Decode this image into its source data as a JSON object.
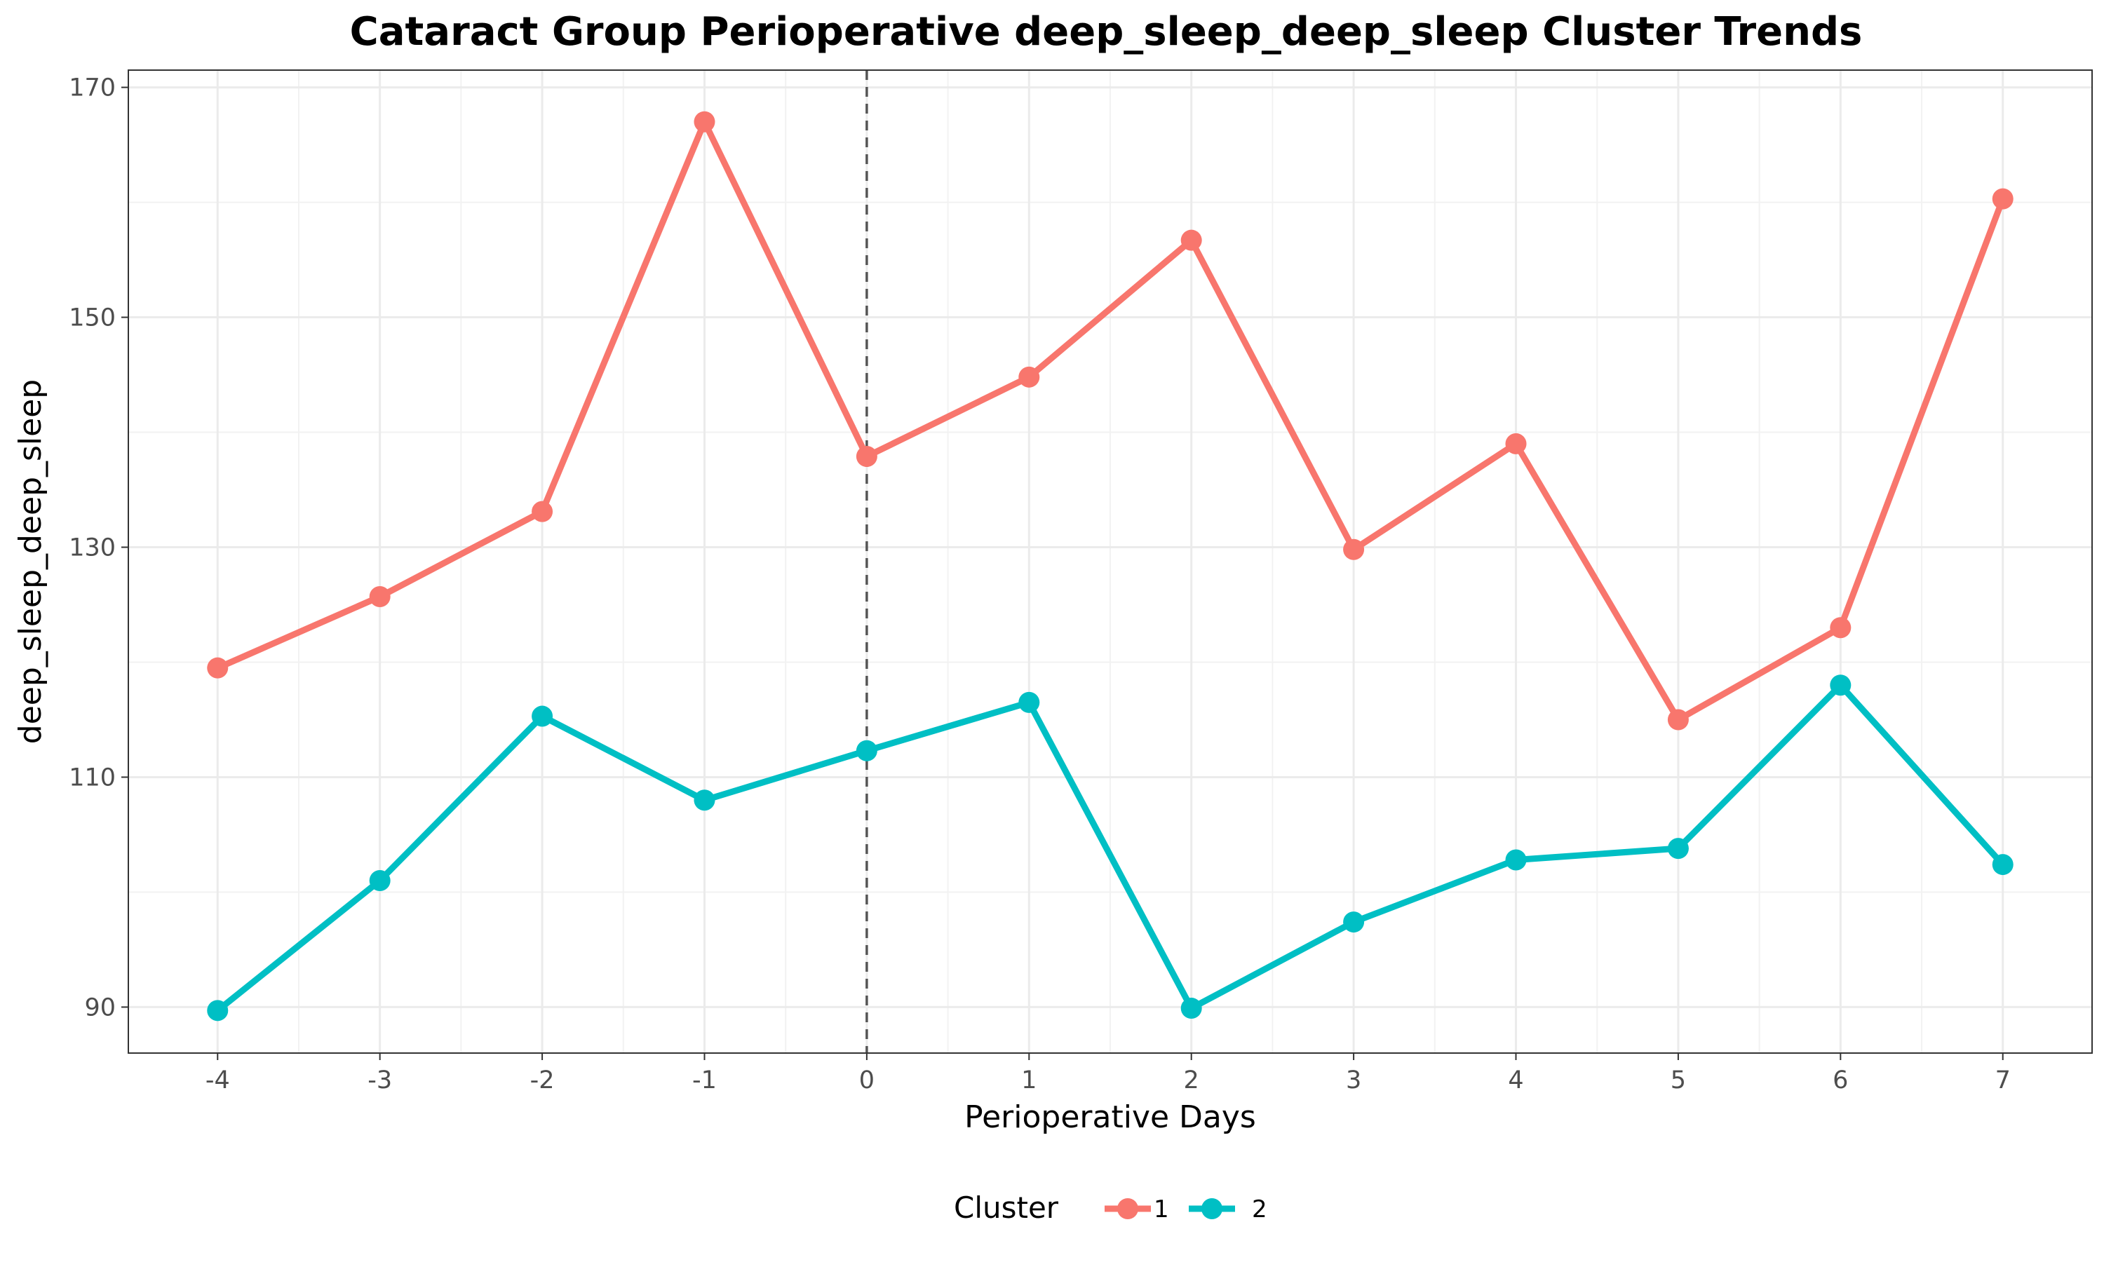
{
  "chart_data": {
    "type": "line",
    "title": "Cataract Group Perioperative deep_sleep_deep_sleep Cluster Trends",
    "xlabel": "Perioperative Days",
    "ylabel": "deep_sleep_deep_sleep",
    "x": [
      -4,
      -3,
      -2,
      -1,
      0,
      1,
      2,
      3,
      4,
      5,
      6,
      7
    ],
    "x_tick_labels": [
      "-4",
      "-3",
      "-2",
      "-1",
      "0",
      "1",
      "2",
      "3",
      "4",
      "5",
      "6",
      "7"
    ],
    "xlim": [
      -4.55,
      7.55
    ],
    "ylim": [
      86.0,
      171.5
    ],
    "y_ticks": [
      90,
      110,
      130,
      150,
      170
    ],
    "y_tick_labels": [
      "90",
      "110",
      "130",
      "150",
      "170"
    ],
    "reference_line": {
      "x": 0,
      "style": "dashed"
    },
    "grid": true,
    "legend": {
      "title": "Cluster",
      "position": "bottom"
    },
    "series": [
      {
        "name": "1",
        "color": "#F8766D",
        "values": [
          119.5,
          125.7,
          133.1,
          167.0,
          137.9,
          144.8,
          156.7,
          129.8,
          139.0,
          115.0,
          123.0,
          160.3
        ]
      },
      {
        "name": "2",
        "color": "#00BFC4",
        "values": [
          89.7,
          101.0,
          115.3,
          108.0,
          112.3,
          116.5,
          89.9,
          97.4,
          102.8,
          103.8,
          118.0,
          102.4
        ]
      }
    ]
  }
}
